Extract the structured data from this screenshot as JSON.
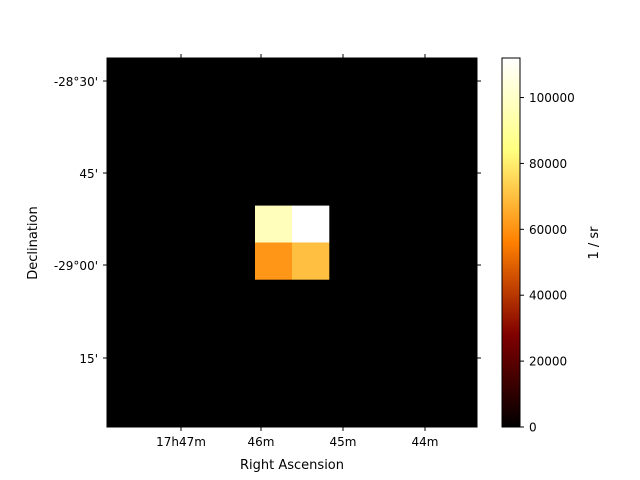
{
  "chart_data": {
    "type": "heatmap",
    "xlabel": "Right Ascension",
    "ylabel": "Declination",
    "x_ticks": [
      {
        "label": "17h47m"
      },
      {
        "label": "46m"
      },
      {
        "label": "45m"
      },
      {
        "label": "44m"
      }
    ],
    "y_ticks": [
      {
        "label": "-28°30'"
      },
      {
        "label": "45'"
      },
      {
        "label": "-29°00'"
      },
      {
        "label": "15'"
      }
    ],
    "grid": false,
    "image_size": [
      10,
      10
    ],
    "nonzero_pixels": [
      {
        "row": 4,
        "col": 4,
        "value": 97000
      },
      {
        "row": 4,
        "col": 5,
        "value": 112000
      },
      {
        "row": 5,
        "col": 4,
        "value": 61000
      },
      {
        "row": 5,
        "col": 5,
        "value": 70000
      }
    ],
    "background_value": 0,
    "colormap": "afmhot",
    "colorbar": {
      "label": "1 / sr",
      "range": [
        0,
        112000
      ],
      "ticks": [
        0,
        20000,
        40000,
        60000,
        80000,
        100000
      ],
      "tick_labels": [
        "0",
        "20000",
        "40000",
        "60000",
        "80000",
        "100000"
      ],
      "placement": "right"
    }
  }
}
